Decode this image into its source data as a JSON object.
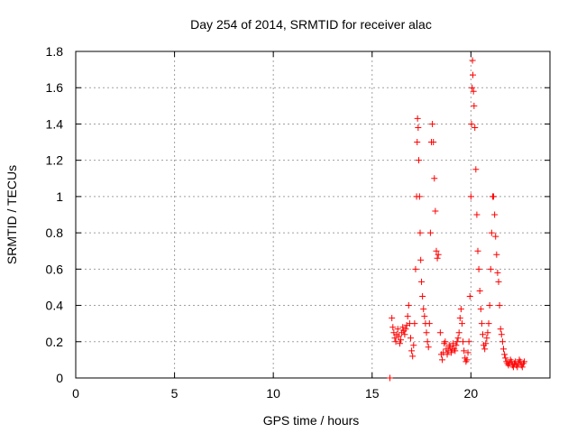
{
  "chart_data": {
    "type": "scatter",
    "title": "Day 254 of 2014, SRMTID for receiver alac",
    "xlabel": "GPS time / hours",
    "ylabel": "SRMTID / TECUs",
    "xlim": [
      0,
      24
    ],
    "ylim": [
      0,
      1.8
    ],
    "x_ticks": [
      0,
      5,
      10,
      15,
      20
    ],
    "x_tick_labels": [
      "0",
      "5",
      "10",
      "15",
      "20"
    ],
    "y_ticks": [
      0,
      0.2,
      0.4,
      0.6,
      0.8,
      1.0,
      1.2,
      1.4,
      1.6,
      1.8
    ],
    "y_tick_labels": [
      "0",
      "0.2",
      "0.4",
      "0.6",
      "0.8",
      "1",
      "1.2",
      "1.4",
      "1.6",
      "1.8"
    ],
    "grid": true,
    "marker_color": "#ff0000",
    "series": [
      {
        "name": "SRMTID",
        "marker": "plus",
        "points": [
          [
            15.9,
            0.0
          ],
          [
            16.0,
            0.33
          ],
          [
            16.05,
            0.28
          ],
          [
            16.1,
            0.25
          ],
          [
            16.15,
            0.22
          ],
          [
            16.2,
            0.2
          ],
          [
            16.25,
            0.24
          ],
          [
            16.3,
            0.27
          ],
          [
            16.35,
            0.23
          ],
          [
            16.4,
            0.19
          ],
          [
            16.45,
            0.21
          ],
          [
            16.5,
            0.25
          ],
          [
            16.55,
            0.28
          ],
          [
            16.6,
            0.26
          ],
          [
            16.65,
            0.24
          ],
          [
            16.7,
            0.27
          ],
          [
            16.75,
            0.29
          ],
          [
            16.8,
            0.34
          ],
          [
            16.85,
            0.4
          ],
          [
            16.9,
            0.3
          ],
          [
            16.95,
            0.22
          ],
          [
            17.0,
            0.15
          ],
          [
            17.05,
            0.12
          ],
          [
            17.1,
            0.18
          ],
          [
            17.15,
            0.3
          ],
          [
            17.2,
            0.6
          ],
          [
            17.25,
            1.0
          ],
          [
            17.28,
            1.3
          ],
          [
            17.3,
            1.43
          ],
          [
            17.33,
            1.38
          ],
          [
            17.36,
            1.2
          ],
          [
            17.4,
            1.0
          ],
          [
            17.43,
            0.8
          ],
          [
            17.46,
            0.65
          ],
          [
            17.5,
            0.53
          ],
          [
            17.55,
            0.45
          ],
          [
            17.6,
            0.38
          ],
          [
            17.65,
            0.34
          ],
          [
            17.7,
            0.3
          ],
          [
            17.75,
            0.25
          ],
          [
            17.8,
            0.2
          ],
          [
            17.85,
            0.17
          ],
          [
            17.9,
            0.3
          ],
          [
            17.95,
            0.8
          ],
          [
            18.0,
            1.3
          ],
          [
            18.05,
            1.4
          ],
          [
            18.1,
            1.3
          ],
          [
            18.15,
            1.1
          ],
          [
            18.2,
            0.92
          ],
          [
            18.25,
            0.7
          ],
          [
            18.3,
            0.66
          ],
          [
            18.35,
            0.68
          ],
          [
            18.45,
            0.25
          ],
          [
            18.5,
            0.13
          ],
          [
            18.55,
            0.1
          ],
          [
            18.6,
            0.14
          ],
          [
            18.65,
            0.19
          ],
          [
            18.7,
            0.2
          ],
          [
            18.75,
            0.16
          ],
          [
            18.8,
            0.13
          ],
          [
            18.85,
            0.15
          ],
          [
            18.9,
            0.18
          ],
          [
            18.95,
            0.17
          ],
          [
            19.0,
            0.14
          ],
          [
            19.05,
            0.16
          ],
          [
            19.1,
            0.19
          ],
          [
            19.15,
            0.16
          ],
          [
            19.2,
            0.15
          ],
          [
            19.25,
            0.18
          ],
          [
            19.3,
            0.2
          ],
          [
            19.35,
            0.22
          ],
          [
            19.4,
            0.25
          ],
          [
            19.45,
            0.33
          ],
          [
            19.5,
            0.38
          ],
          [
            19.55,
            0.3
          ],
          [
            19.6,
            0.2
          ],
          [
            19.65,
            0.15
          ],
          [
            19.7,
            0.11
          ],
          [
            19.75,
            0.09
          ],
          [
            19.8,
            0.1
          ],
          [
            19.85,
            0.14
          ],
          [
            19.9,
            0.2
          ],
          [
            19.95,
            0.45
          ],
          [
            20.0,
            1.0
          ],
          [
            20.03,
            1.4
          ],
          [
            20.06,
            1.6
          ],
          [
            20.08,
            1.75
          ],
          [
            20.1,
            1.67
          ],
          [
            20.13,
            1.58
          ],
          [
            20.16,
            1.5
          ],
          [
            20.2,
            1.38
          ],
          [
            20.25,
            1.15
          ],
          [
            20.3,
            0.9
          ],
          [
            20.35,
            0.7
          ],
          [
            20.4,
            0.6
          ],
          [
            20.45,
            0.48
          ],
          [
            20.5,
            0.38
          ],
          [
            20.55,
            0.3
          ],
          [
            20.6,
            0.24
          ],
          [
            20.65,
            0.18
          ],
          [
            20.7,
            0.16
          ],
          [
            20.75,
            0.19
          ],
          [
            20.8,
            0.22
          ],
          [
            20.85,
            0.25
          ],
          [
            20.9,
            0.3
          ],
          [
            20.95,
            0.4
          ],
          [
            21.0,
            0.6
          ],
          [
            21.05,
            0.8
          ],
          [
            21.1,
            1.0
          ],
          [
            21.15,
            1.0
          ],
          [
            21.2,
            0.9
          ],
          [
            21.25,
            0.78
          ],
          [
            21.3,
            0.68
          ],
          [
            21.35,
            0.58
          ],
          [
            21.4,
            0.53
          ],
          [
            21.45,
            0.4
          ],
          [
            21.5,
            0.27
          ],
          [
            21.55,
            0.24
          ],
          [
            21.6,
            0.2
          ],
          [
            21.65,
            0.16
          ],
          [
            21.7,
            0.13
          ],
          [
            21.75,
            0.11
          ],
          [
            21.8,
            0.09
          ],
          [
            21.85,
            0.08
          ],
          [
            21.9,
            0.07
          ],
          [
            21.95,
            0.08
          ],
          [
            22.0,
            0.1
          ],
          [
            22.05,
            0.09
          ],
          [
            22.1,
            0.07
          ],
          [
            22.15,
            0.06
          ],
          [
            22.2,
            0.08
          ],
          [
            22.25,
            0.09
          ],
          [
            22.3,
            0.07
          ],
          [
            22.35,
            0.06
          ],
          [
            22.4,
            0.08
          ],
          [
            22.45,
            0.1
          ],
          [
            22.5,
            0.09
          ],
          [
            22.55,
            0.07
          ],
          [
            22.6,
            0.06
          ],
          [
            22.65,
            0.08
          ],
          [
            22.7,
            0.09
          ]
        ]
      }
    ]
  }
}
